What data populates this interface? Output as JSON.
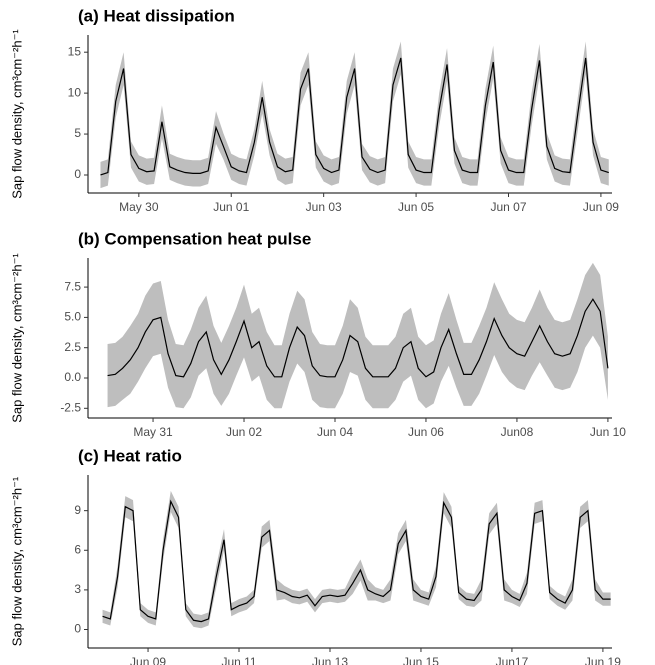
{
  "chart_data": [
    {
      "type": "line",
      "title": "(a) Heat dissipation",
      "ylabel": "Sap flow density, cm³cm⁻²h⁻¹",
      "xlim": [
        148.9,
        160.24
      ],
      "ylim": [
        -2.2,
        17.1
      ],
      "xticks": [
        {
          "value": 150,
          "label": "May 30"
        },
        {
          "value": 152,
          "label": "Jun 01"
        },
        {
          "value": 154,
          "label": "Jun 03"
        },
        {
          "value": 156,
          "label": "Jun 05"
        },
        {
          "value": 158,
          "label": "Jun 07"
        },
        {
          "value": 160,
          "label": "Jun 09"
        }
      ],
      "yticks": [
        0,
        5,
        10,
        15
      ],
      "x": [
        149.17,
        149.33,
        149.5,
        149.67,
        149.83,
        150,
        150.17,
        150.33,
        150.5,
        150.67,
        150.83,
        151,
        151.17,
        151.33,
        151.5,
        151.67,
        151.83,
        152,
        152.17,
        152.33,
        152.5,
        152.67,
        152.83,
        153,
        153.17,
        153.33,
        153.5,
        153.67,
        153.83,
        154,
        154.17,
        154.33,
        154.5,
        154.67,
        154.83,
        155,
        155.17,
        155.33,
        155.5,
        155.67,
        155.83,
        156,
        156.17,
        156.33,
        156.5,
        156.67,
        156.83,
        157,
        157.17,
        157.33,
        157.5,
        157.67,
        157.83,
        158,
        158.17,
        158.33,
        158.5,
        158.67,
        158.83,
        159,
        159.17,
        159.33,
        159.5,
        159.67,
        159.83,
        160,
        160.17
      ],
      "series": [
        {
          "color": "#000000",
          "band_color": "#bebebe",
          "values": [
            0,
            0.3,
            9,
            13,
            2.5,
            0.8,
            0.4,
            0.5,
            6.5,
            1,
            0.6,
            0.3,
            0.2,
            0.2,
            0.5,
            5.8,
            3.5,
            1,
            0.5,
            0.3,
            4,
            9.5,
            4,
            1,
            0.4,
            0.6,
            10.5,
            13,
            2.5,
            0.8,
            0.3,
            0.6,
            9.5,
            13,
            2.2,
            0.7,
            0.3,
            0.6,
            11,
            14.3,
            2.5,
            0.6,
            0.3,
            0.3,
            8,
            13.5,
            3,
            0.6,
            0.3,
            0.3,
            8.5,
            13.8,
            3,
            0.6,
            0.3,
            0.3,
            8,
            14,
            3.5,
            0.8,
            0.4,
            0.3,
            7.5,
            14.3,
            4,
            0.6,
            0.3
          ],
          "upper": [
            1.6,
            1.9,
            11,
            15,
            4.1,
            2.4,
            2,
            2.1,
            8.5,
            2.6,
            2.2,
            1.9,
            1.8,
            1.8,
            2.1,
            7.8,
            5.1,
            2.6,
            2.1,
            1.9,
            5.6,
            11.5,
            5.6,
            2.6,
            2,
            2.2,
            12.5,
            15,
            4.1,
            2.4,
            1.9,
            2.2,
            11.5,
            15,
            3.8,
            2.3,
            1.9,
            2.2,
            13,
            16.3,
            4.1,
            2.2,
            1.9,
            1.9,
            10,
            15.5,
            4.6,
            2.2,
            1.9,
            1.9,
            10.5,
            15.8,
            4.6,
            2.2,
            1.9,
            1.9,
            10,
            16,
            5.1,
            2.4,
            2,
            1.9,
            9.5,
            16.3,
            5.6,
            2.2,
            1.9
          ],
          "lower": [
            -1.6,
            -1.3,
            7,
            11,
            0.9,
            -0.8,
            -1.2,
            -1.1,
            4.5,
            -0.6,
            -1,
            -1.3,
            -1.4,
            -1.4,
            -1.1,
            3.8,
            1.9,
            -0.6,
            -1.1,
            -1.3,
            2.4,
            7.5,
            2.4,
            -0.6,
            -1.2,
            -1,
            8.5,
            11,
            0.9,
            -0.8,
            -1.3,
            -1,
            7.5,
            11,
            0.6,
            -0.9,
            -1.3,
            -1,
            9,
            12.3,
            0.9,
            -1,
            -1.3,
            -1.3,
            6,
            11.5,
            1.4,
            -1,
            -1.3,
            -1.3,
            6.5,
            11.8,
            1.4,
            -1,
            -1.3,
            -1.3,
            6,
            12,
            1.9,
            -0.8,
            -1.2,
            -1.3,
            5.5,
            12.3,
            2.4,
            -1,
            -1.3
          ]
        }
      ]
    },
    {
      "type": "line",
      "title": "(b) Compensation heat pulse",
      "ylabel": "Sap flow density, cm³cm⁻²h⁻¹",
      "xlim": [
        149.57,
        161.09
      ],
      "ylim": [
        -3.3,
        9.9
      ],
      "xticks": [
        {
          "value": 151,
          "label": "May 31"
        },
        {
          "value": 153,
          "label": "Jun 02"
        },
        {
          "value": 155,
          "label": "Jun 04"
        },
        {
          "value": 157,
          "label": "Jun 06"
        },
        {
          "value": 159,
          "label": "Jun08"
        },
        {
          "value": 161,
          "label": "Jun 10"
        }
      ],
      "yticks": [
        {
          "value": -2.5,
          "label": "-2.5"
        },
        {
          "value": 0,
          "label": "0.0"
        },
        2.5,
        {
          "value": 5,
          "label": "5.0"
        },
        7.5
      ],
      "x": [
        150,
        150.17,
        150.33,
        150.5,
        150.67,
        150.83,
        151,
        151.17,
        151.33,
        151.5,
        151.67,
        151.83,
        152,
        152.17,
        152.33,
        152.5,
        152.67,
        152.83,
        153,
        153.17,
        153.33,
        153.5,
        153.67,
        153.83,
        154,
        154.17,
        154.33,
        154.5,
        154.67,
        154.83,
        155,
        155.17,
        155.33,
        155.5,
        155.67,
        155.83,
        156,
        156.17,
        156.33,
        156.5,
        156.67,
        156.83,
        157,
        157.17,
        157.33,
        157.5,
        157.67,
        157.83,
        158,
        158.17,
        158.33,
        158.5,
        158.67,
        158.83,
        159,
        159.17,
        159.33,
        159.5,
        159.67,
        159.83,
        160,
        160.17,
        160.33,
        160.5,
        160.67,
        160.83,
        161
      ],
      "series": [
        {
          "color": "#000000",
          "band_color": "#bebebe",
          "values": [
            0.2,
            0.3,
            0.8,
            1.5,
            2.5,
            3.8,
            4.8,
            5,
            2,
            0.2,
            0.1,
            1.2,
            3,
            3.8,
            1.5,
            0.3,
            1.5,
            3,
            4.7,
            2.5,
            3,
            1,
            0.1,
            0.1,
            2.5,
            4.2,
            3.5,
            1,
            0.2,
            0.1,
            0.1,
            1.5,
            3.5,
            3,
            0.8,
            0.1,
            0.1,
            0.1,
            0.8,
            2.5,
            3,
            0.8,
            0.1,
            0.5,
            2.5,
            4,
            2,
            0.3,
            0.3,
            1.5,
            3,
            4.9,
            3.5,
            2.5,
            2,
            1.8,
            3,
            4.3,
            3,
            2,
            1.8,
            2,
            3.5,
            5.5,
            6.5,
            5.5,
            0.8
          ],
          "upper": [
            2.8,
            2.9,
            3.4,
            4.3,
            5.3,
            6.8,
            7.8,
            8,
            4.8,
            2.8,
            2.7,
            4,
            5.8,
            6.8,
            4.3,
            2.9,
            4.3,
            5.8,
            7.7,
            5.3,
            5.8,
            3.8,
            2.7,
            2.7,
            5.3,
            7.2,
            6.5,
            3.8,
            2.8,
            2.7,
            2.7,
            4.3,
            6.5,
            5.8,
            3.4,
            2.7,
            2.7,
            2.7,
            3.4,
            5.3,
            5.8,
            3.4,
            2.7,
            3.1,
            5.3,
            7,
            4.8,
            2.9,
            2.9,
            4.3,
            5.8,
            7.9,
            6.5,
            5.3,
            4.8,
            4.6,
            5.8,
            7.3,
            5.8,
            4.8,
            4.6,
            4.8,
            6.5,
            8.5,
            9.5,
            8.5,
            3.4
          ],
          "lower": [
            -2.4,
            -2.3,
            -1.8,
            -1.3,
            -0.3,
            0.8,
            1.8,
            2,
            -0.8,
            -2.4,
            -2.5,
            -1.6,
            0.2,
            0.8,
            -1.3,
            -2.3,
            -1.3,
            0.2,
            1.7,
            -0.3,
            0.2,
            -1.8,
            -2.5,
            -2.5,
            -0.3,
            1.2,
            0.5,
            -1.8,
            -2.4,
            -2.5,
            -2.5,
            -1.3,
            0.5,
            0.2,
            -1.8,
            -2.5,
            -2.5,
            -2.5,
            -1.8,
            -0.3,
            0.2,
            -1.8,
            -2.5,
            -2.1,
            -0.3,
            1,
            -0.8,
            -2.3,
            -2.3,
            -1.3,
            0.2,
            1.9,
            0.5,
            -0.3,
            -0.8,
            -1,
            0.2,
            1.3,
            0.2,
            -0.8,
            -1,
            -0.8,
            0.5,
            2.5,
            3.5,
            2.5,
            -1.8
          ]
        }
      ]
    },
    {
      "type": "line",
      "title": "(c) Heat ratio",
      "ylabel": "Sap flow density, cm³cm⁻²h⁻¹",
      "xlim": [
        158.68,
        170.2
      ],
      "ylim": [
        -1.4,
        11.7
      ],
      "xticks": [
        {
          "value": 160,
          "label": "Jun 09"
        },
        {
          "value": 162,
          "label": "Jun 11"
        },
        {
          "value": 164,
          "label": "Jun 13"
        },
        {
          "value": 166,
          "label": "Jun 15"
        },
        {
          "value": 168,
          "label": "Jun17"
        },
        {
          "value": 170,
          "label": "Jun 19"
        }
      ],
      "yticks": [
        0,
        3,
        6,
        9
      ],
      "x": [
        159,
        159.17,
        159.33,
        159.5,
        159.67,
        159.83,
        160,
        160.17,
        160.33,
        160.5,
        160.67,
        160.83,
        161,
        161.17,
        161.33,
        161.5,
        161.67,
        161.83,
        162,
        162.17,
        162.33,
        162.5,
        162.67,
        162.83,
        163,
        163.17,
        163.33,
        163.5,
        163.67,
        163.83,
        164,
        164.17,
        164.33,
        164.5,
        164.67,
        164.83,
        165,
        165.17,
        165.33,
        165.5,
        165.67,
        165.83,
        166,
        166.17,
        166.33,
        166.5,
        166.67,
        166.83,
        167,
        167.17,
        167.33,
        167.5,
        167.67,
        167.83,
        168,
        168.17,
        168.33,
        168.5,
        168.67,
        168.83,
        169,
        169.17,
        169.33,
        169.5,
        169.67,
        169.83,
        170,
        170.17
      ],
      "series": [
        {
          "color": "#000000",
          "band_color": "#bebebe",
          "values": [
            1,
            0.8,
            4,
            9.3,
            9,
            1.5,
            1,
            0.8,
            6,
            9.7,
            8.5,
            1.5,
            0.7,
            0.6,
            0.8,
            4,
            6.8,
            1.5,
            1.8,
            2,
            2.5,
            7,
            7.5,
            3,
            2.8,
            2.5,
            2.4,
            2.6,
            1.8,
            2.5,
            2.6,
            2.5,
            2.6,
            3.5,
            4.5,
            3,
            2.7,
            2.5,
            3,
            6.5,
            7.5,
            3,
            2.5,
            2.3,
            4,
            9.6,
            8.5,
            2.8,
            2.3,
            2.2,
            3,
            8,
            8.8,
            3,
            2.5,
            2.2,
            3.5,
            8.8,
            9,
            2.8,
            2.3,
            2,
            3,
            8.5,
            9,
            3,
            2.3,
            2.3
          ],
          "upper": [
            1.5,
            1.3,
            4.8,
            10.1,
            9.8,
            2,
            1.5,
            1.3,
            6.8,
            10.5,
            9.3,
            2,
            1.2,
            1.1,
            1.3,
            4.8,
            7.6,
            2,
            2.3,
            2.5,
            3,
            7.8,
            8.3,
            3.8,
            3.3,
            3,
            2.9,
            3.1,
            2.3,
            3,
            3.1,
            3,
            3.1,
            4.3,
            5.3,
            3.8,
            3.2,
            3,
            3.8,
            7.3,
            8.3,
            3.8,
            3,
            2.8,
            4.8,
            10.4,
            9.3,
            3.3,
            2.8,
            2.7,
            3.8,
            8.8,
            9.6,
            3.8,
            3,
            2.7,
            4.3,
            9.6,
            9.8,
            3.3,
            2.8,
            2.5,
            3.8,
            9.3,
            9.8,
            3.8,
            2.8,
            2.8
          ],
          "lower": [
            0.5,
            0.3,
            3.2,
            8.5,
            8.2,
            1,
            0.5,
            0.3,
            5.2,
            8.9,
            7.7,
            1,
            0.2,
            0.1,
            0.3,
            3.2,
            6,
            1,
            1.3,
            1.5,
            2,
            6.2,
            6.7,
            2.2,
            2.3,
            2,
            1.9,
            2.1,
            1.3,
            2,
            2.1,
            2,
            2.1,
            2.7,
            3.7,
            2.2,
            2.2,
            2,
            2.2,
            5.7,
            6.7,
            2.2,
            2,
            1.8,
            3.2,
            8.8,
            7.7,
            2.3,
            1.8,
            1.7,
            2.2,
            7.2,
            8,
            2.2,
            2,
            1.7,
            2.7,
            8,
            8.2,
            2.3,
            1.8,
            1.5,
            2.2,
            7.7,
            8.2,
            2.2,
            1.8,
            1.8
          ]
        }
      ]
    }
  ]
}
